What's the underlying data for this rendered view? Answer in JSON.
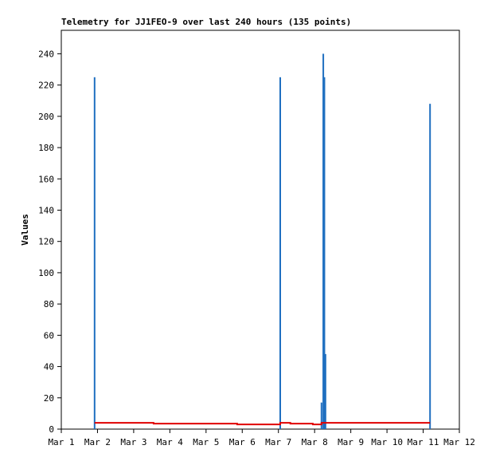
{
  "chart_data": {
    "type": "line",
    "title": "Telemetry for JJ1FEO-9 over last 240 hours (135 points)",
    "y_label": "Values",
    "xlim": [
      1,
      12
    ],
    "xticks": [
      {
        "value": 1,
        "label": "Mar 1"
      },
      {
        "value": 2,
        "label": "Mar 2"
      },
      {
        "value": 3,
        "label": "Mar 3"
      },
      {
        "value": 4,
        "label": "Mar 4"
      },
      {
        "value": 5,
        "label": "Mar 5"
      },
      {
        "value": 6,
        "label": "Mar 6"
      },
      {
        "value": 7,
        "label": "Mar 7"
      },
      {
        "value": 8,
        "label": "Mar 8"
      },
      {
        "value": 9,
        "label": "Mar 9"
      },
      {
        "value": 10,
        "label": "Mar 10"
      },
      {
        "value": 11,
        "label": "Mar 11"
      },
      {
        "value": 12,
        "label": "Mar 12"
      }
    ],
    "ylim": [
      0,
      255
    ],
    "yticks": [
      0,
      20,
      40,
      60,
      80,
      100,
      120,
      140,
      160,
      180,
      200,
      220,
      240
    ],
    "series": [
      {
        "type": "bar",
        "color": "#1f6fc0",
        "x": [
          1.92,
          7.05,
          8.19,
          8.24,
          8.27,
          8.3,
          11.19
        ],
        "values": [
          225,
          225,
          17,
          240,
          225,
          48,
          208
        ]
      },
      {
        "type": "line",
        "color": "#e00000",
        "x": [
          1.92,
          3.55,
          3.55,
          5.86,
          5.86,
          7.05,
          7.05,
          7.33,
          7.33,
          7.95,
          7.95,
          8.19,
          8.19,
          11.19
        ],
        "values": [
          4,
          4,
          3.5,
          3.5,
          3,
          3,
          4,
          4,
          3.5,
          3.5,
          3,
          3,
          4,
          4
        ]
      }
    ]
  }
}
